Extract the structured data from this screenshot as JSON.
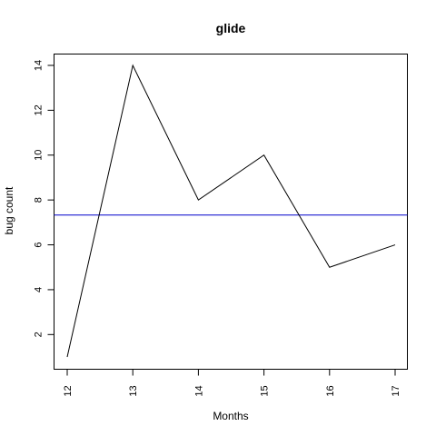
{
  "chart_data": {
    "type": "line",
    "title": "glide",
    "xlabel": "Months",
    "ylabel": "bug count",
    "x": [
      12,
      13,
      14,
      15,
      16,
      17
    ],
    "y": [
      1,
      14,
      8,
      10,
      5,
      6
    ],
    "xlim": [
      12,
      17
    ],
    "ylim": [
      1,
      14
    ],
    "x_ticks": [
      12,
      13,
      14,
      15,
      16,
      17
    ],
    "y_ticks": [
      2,
      4,
      6,
      8,
      10,
      12,
      14
    ],
    "reference_line": {
      "y": 7.33,
      "color": "#0000cc"
    },
    "line_color": "#000000",
    "grid": false,
    "legend": "none"
  }
}
